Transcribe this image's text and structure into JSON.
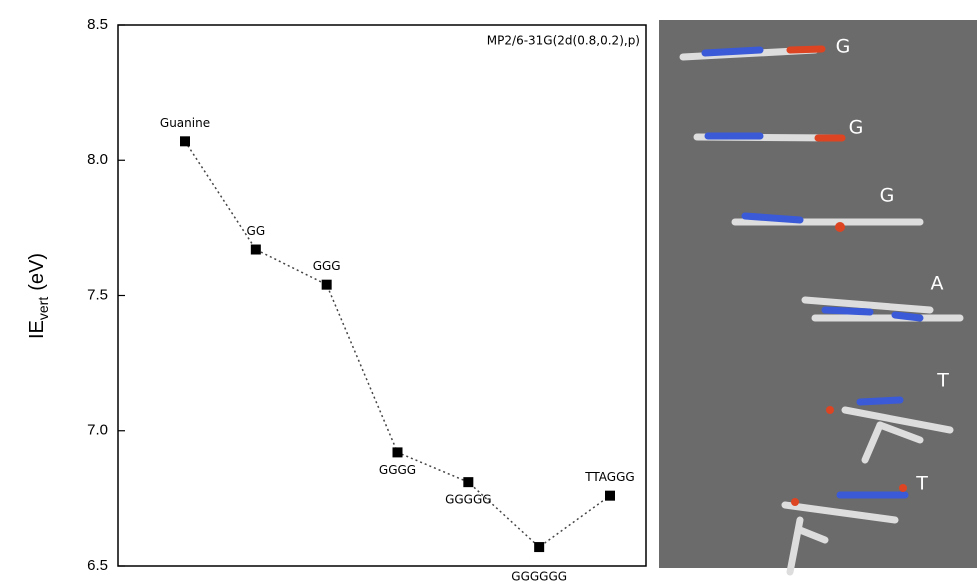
{
  "chart_data": {
    "type": "line",
    "annotation": "MP2/6-31G(2d(0.8,0.2),p)",
    "ylabel": "IE",
    "ylabel_subscript": "vert",
    "ylabel_unit": "(eV)",
    "categories": [
      "Guanine",
      "GG",
      "GGG",
      "GGGG",
      "GGGGG",
      "GGGGGG",
      "TTAGGG"
    ],
    "values": [
      8.07,
      7.67,
      7.54,
      6.92,
      6.81,
      6.57,
      6.76
    ],
    "color": "#000000",
    "ylim": [
      6.5,
      8.5
    ],
    "yticks": [
      6.5,
      {
        "value": 7.0,
        "label": "7.0"
      },
      7.5,
      {
        "value": 8.0,
        "label": "8.0"
      },
      8.5
    ],
    "panel_labels": [
      "G",
      "G",
      "G",
      "A",
      "T",
      "T"
    ]
  }
}
